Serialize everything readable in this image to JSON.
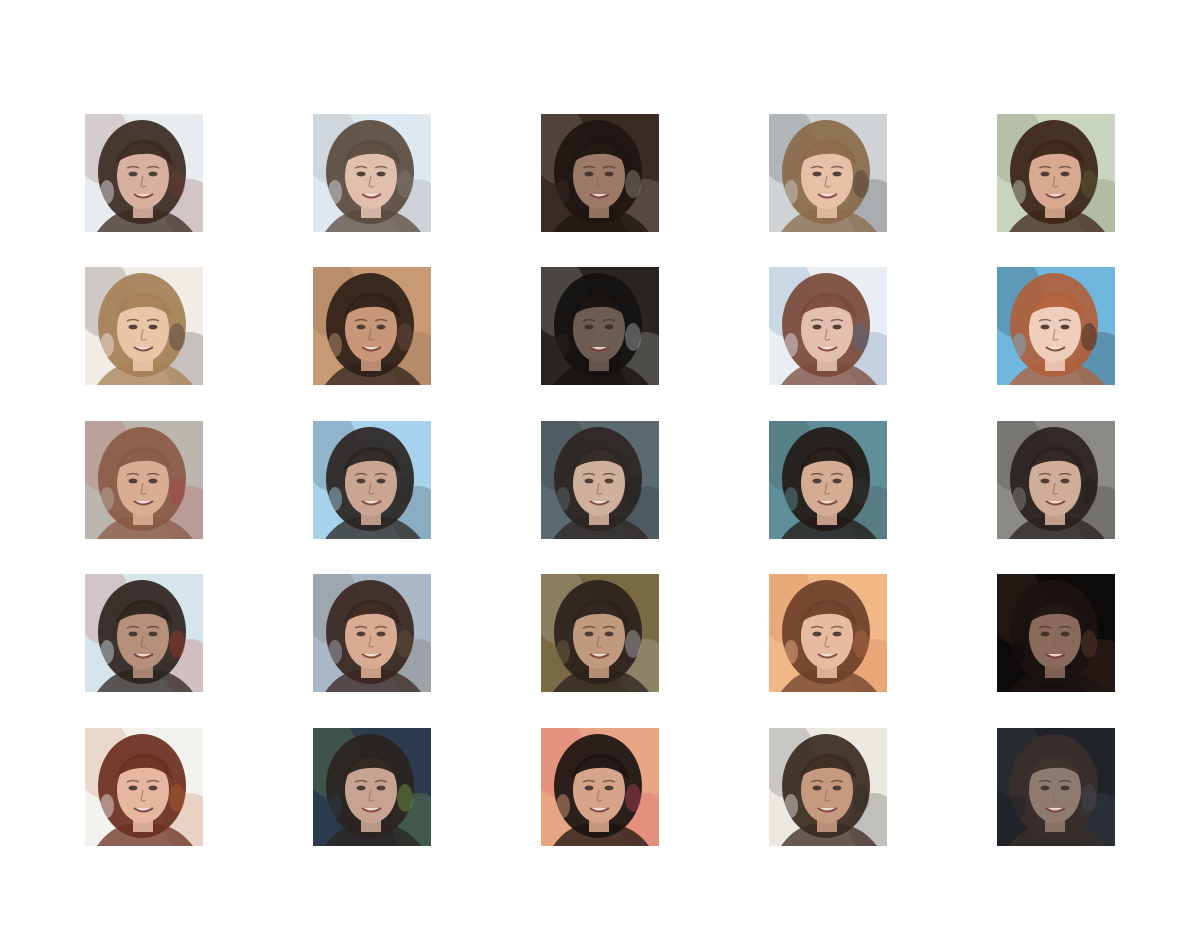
{
  "figure": {
    "rows": 5,
    "columns": 5,
    "description_kind": "generated-face-samples",
    "samples": [
      {
        "bg": "#e9ecef",
        "hair": "#3a2a22",
        "skin": "#d7b0a0",
        "accent": "#7a3b30"
      },
      {
        "bg": "#dfe8ef",
        "hair": "#5a4a3e",
        "skin": "#e0c0ad",
        "accent": "#8c8a88"
      },
      {
        "bg": "#3a2c25",
        "hair": "#1e1511",
        "skin": "#9c7a68",
        "accent": "#b9b2a8"
      },
      {
        "bg": "#cfd3d6",
        "hair": "#8a6a4a",
        "skin": "#e7c0a8",
        "accent": "#2a2a2a"
      },
      {
        "bg": "#c9d4bf",
        "hair": "#3b2418",
        "skin": "#d8a890",
        "accent": "#5e6b3a"
      },
      {
        "bg": "#f2ece6",
        "hair": "#a58055",
        "skin": "#e9c6a8",
        "accent": "#2a2a2a"
      },
      {
        "bg": "#c89a73",
        "hair": "#2f2019",
        "skin": "#c8977a",
        "accent": "#7a5a44"
      },
      {
        "bg": "#2a2521",
        "hair": "#141110",
        "skin": "#6d5c52",
        "accent": "#d8dde0"
      },
      {
        "bg": "#e9eef3",
        "hair": "#7a4a3a",
        "skin": "#e3c0ad",
        "accent": "#3f6fa0"
      },
      {
        "bg": "#6fb7dd",
        "hair": "#b0603a",
        "skin": "#efcdbb",
        "accent": "#111111"
      },
      {
        "bg": "#bcb7ae",
        "hair": "#8a5a46",
        "skin": "#d9ad94",
        "accent": "#b0404a"
      },
      {
        "bg": "#a7d2ec",
        "hair": "#2b2522",
        "skin": "#c9a592",
        "accent": "#2a2a2a"
      },
      {
        "bg": "#5a6a70",
        "hair": "#2d2622",
        "skin": "#cfb09d",
        "accent": "#1f2326"
      },
      {
        "bg": "#5f8f99",
        "hair": "#221a16",
        "skin": "#d4ab93",
        "accent": "#3b3b3b"
      },
      {
        "bg": "#8c8a84",
        "hair": "#2a2220",
        "skin": "#d0ad98",
        "accent": "#1c1c1c"
      },
      {
        "bg": "#d6e4ec",
        "hair": "#2c241f",
        "skin": "#b6907b",
        "accent": "#c33a2e"
      },
      {
        "bg": "#a9b7c6",
        "hair": "#3a2620",
        "skin": "#d8ab92",
        "accent": "#6d5a40"
      },
      {
        "bg": "#7a6a44",
        "hair": "#2b221c",
        "skin": "#c09a7f",
        "accent": "#d8dde0"
      },
      {
        "bg": "#f2b787",
        "hair": "#6e3f2a",
        "skin": "#e8bba1",
        "accent": "#c26f4a"
      },
      {
        "bg": "#0d0b0a",
        "hair": "#1a1412",
        "skin": "#8a6a5a",
        "accent": "#7a4a3a"
      },
      {
        "bg": "#f4f2ef",
        "hair": "#6a2f1f",
        "skin": "#e6b6a0",
        "accent": "#c4652f"
      },
      {
        "bg": "#2c3b4e",
        "hair": "#2a2420",
        "skin": "#c7a491",
        "accent": "#89c24a"
      },
      {
        "bg": "#e7a583",
        "hair": "#1b1412",
        "skin": "#d6a48a",
        "accent": "#d84a6a"
      },
      {
        "bg": "#ece9e3",
        "hair": "#3b2a21",
        "skin": "#c59a7f",
        "accent": "#2a2a2a"
      },
      {
        "bg": "#202428",
        "hair": "#3a2f2a",
        "skin": "#8f7a70",
        "accent": "#4a5560"
      }
    ]
  }
}
